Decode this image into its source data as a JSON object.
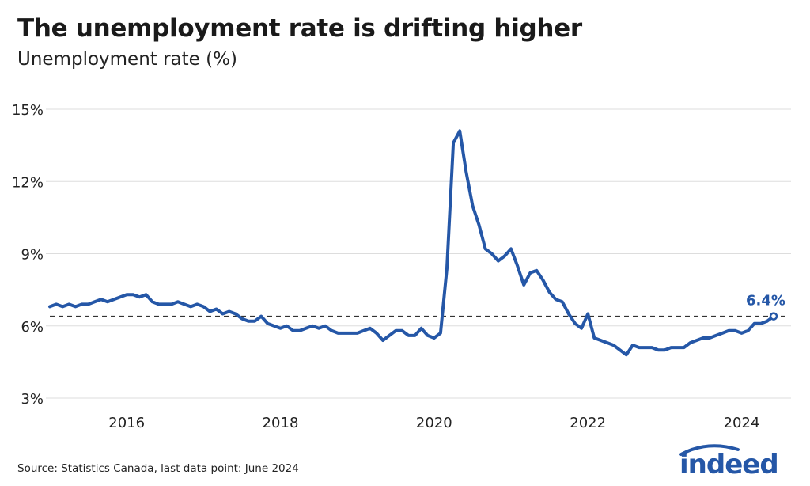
{
  "title": "The unemployment rate is drifting higher",
  "subtitle": "Unemployment rate (%)",
  "source": "Source: Statistics Canada, last data point: June 2024",
  "logo": "indeed",
  "colors": {
    "line": "#2557a7",
    "grid": "#dddddd",
    "reference": "#333333"
  },
  "chart_data": {
    "type": "line",
    "title": "The unemployment rate is drifting higher",
    "ylabel": "Unemployment rate (%)",
    "x_start": "2015-01",
    "x_end": "2024-06",
    "frequency": "monthly",
    "xlim": [
      "2015-01",
      "2024-06"
    ],
    "ylim": [
      3,
      15
    ],
    "xticks": [
      "2016",
      "2018",
      "2020",
      "2022",
      "2024"
    ],
    "yticks": [
      3,
      6,
      9,
      12,
      15
    ],
    "ytick_labels": [
      "3%",
      "6%",
      "9%",
      "12%",
      "15%"
    ],
    "grid": "horizontal",
    "reference_line": {
      "value": 6.4,
      "style": "dashed"
    },
    "annotation": "6.4%",
    "values": [
      6.8,
      6.9,
      6.8,
      6.9,
      6.8,
      6.9,
      6.9,
      7.0,
      7.1,
      7.0,
      7.1,
      7.2,
      7.3,
      7.3,
      7.2,
      7.3,
      7.0,
      6.9,
      6.9,
      6.9,
      7.0,
      6.9,
      6.8,
      6.9,
      6.8,
      6.6,
      6.7,
      6.5,
      6.6,
      6.5,
      6.3,
      6.2,
      6.2,
      6.4,
      6.1,
      6.0,
      5.9,
      6.0,
      5.8,
      5.8,
      5.9,
      6.0,
      5.9,
      6.0,
      5.8,
      5.7,
      5.7,
      5.7,
      5.7,
      5.8,
      5.9,
      5.7,
      5.4,
      5.6,
      5.8,
      5.8,
      5.6,
      5.6,
      5.9,
      5.6,
      5.5,
      5.7,
      8.4,
      13.6,
      14.1,
      12.4,
      11.0,
      10.2,
      9.2,
      9.0,
      8.7,
      8.9,
      9.2,
      8.5,
      7.7,
      8.2,
      8.3,
      7.9,
      7.4,
      7.1,
      7.0,
      6.5,
      6.1,
      5.9,
      6.5,
      5.5,
      5.4,
      5.3,
      5.2,
      5.0,
      4.8,
      5.2,
      5.1,
      5.1,
      5.1,
      5.0,
      5.0,
      5.1,
      5.1,
      5.1,
      5.3,
      5.4,
      5.5,
      5.5,
      5.6,
      5.7,
      5.8,
      5.8,
      5.7,
      5.8,
      6.1,
      6.1,
      6.2,
      6.4
    ]
  }
}
